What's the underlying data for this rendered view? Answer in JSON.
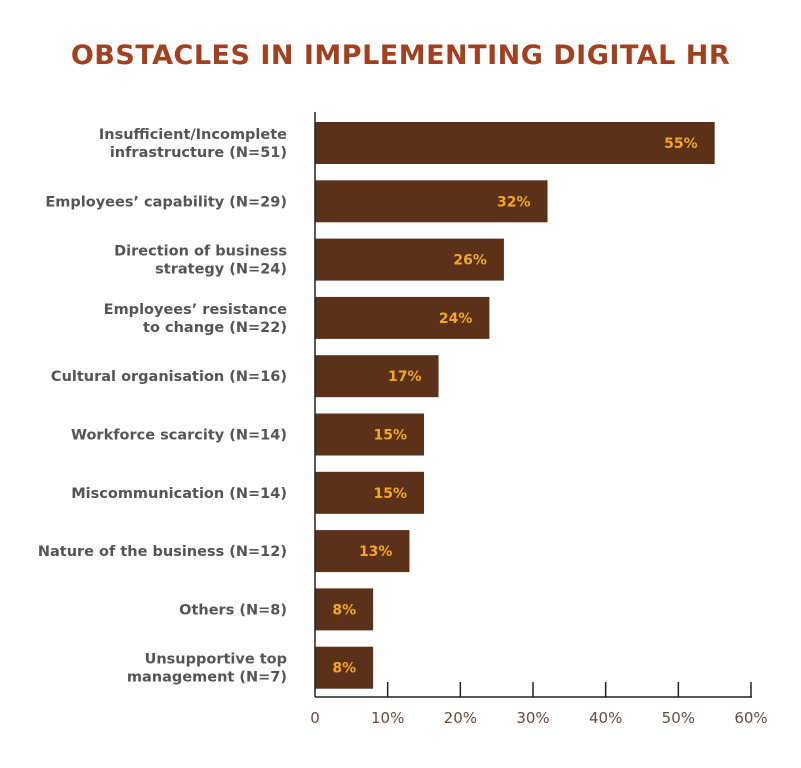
{
  "chart_data": {
    "type": "bar",
    "orientation": "horizontal",
    "title": "OBSTACLES IN IMPLEMENTING DIGITAL HR",
    "categories": [
      [
        "Insufficient/Incomplete",
        "infrastructure (N=51)"
      ],
      [
        "Employees’ capability (N=29)"
      ],
      [
        "Direction of business",
        "strategy (N=24)"
      ],
      [
        "Employees’ resistance",
        "to change (N=22)"
      ],
      [
        "Cultural organisation (N=16)"
      ],
      [
        "Workforce scarcity (N=14)"
      ],
      [
        "Miscommunication (N=14)"
      ],
      [
        "Nature of the business (N=12)"
      ],
      [
        "Others (N=8)"
      ],
      [
        "Unsupportive top",
        "management (N=7)"
      ]
    ],
    "values": [
      55,
      32,
      26,
      24,
      17,
      15,
      15,
      13,
      8,
      8
    ],
    "data_labels": [
      "55%",
      "32%",
      "26%",
      "24%",
      "17%",
      "15%",
      "15%",
      "13%",
      "8%",
      "8%"
    ],
    "xlim": [
      0,
      60
    ],
    "x_ticks": [
      "0",
      "10%",
      "20%",
      "30%",
      "40%",
      "50%",
      "60%"
    ],
    "xlabel": "",
    "ylabel": "",
    "grid": false,
    "colors": {
      "bar": "#5b3219",
      "value_label": "#f5a623",
      "title": "#a3401f",
      "category": "#555555",
      "axis": "#222222"
    }
  }
}
